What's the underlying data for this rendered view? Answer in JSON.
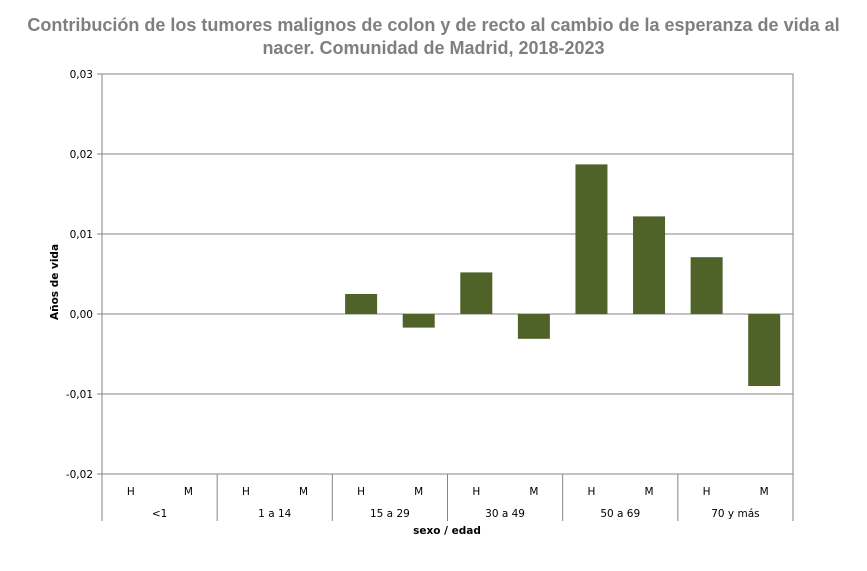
{
  "chart_data": {
    "type": "bar",
    "title": "Contribución de los tumores malignos de colon y de recto al cambio de la esperanza de vida al nacer. Comunidad de Madrid, 2018-2023",
    "xlabel": "sexo / edad",
    "ylabel": "Años de vida",
    "ylim": [
      -0.02,
      0.03
    ],
    "yticks": [
      "-0,02",
      "-0,01",
      "0,00",
      "0,01",
      "0,02",
      "0,03"
    ],
    "ytick_values": [
      -0.02,
      -0.01,
      0.0,
      0.01,
      0.02,
      0.03
    ],
    "grid": true,
    "bar_color": "#4f6228",
    "groups": [
      "<1",
      "1 a 14",
      "15 a 29",
      "30 a 49",
      "50 a 69",
      "70 y más"
    ],
    "sexes": [
      "H",
      "M"
    ],
    "categories": [
      "<1 H",
      "<1 M",
      "1 a 14 H",
      "1 a 14 M",
      "15 a 29 H",
      "15 a 29 M",
      "30 a 49 H",
      "30 a 49 M",
      "50 a 69 H",
      "50 a 69 M",
      "70 y más H",
      "70 y más M"
    ],
    "values": [
      0.0,
      0.0,
      0.0,
      0.0,
      0.0025,
      -0.0017,
      0.0052,
      -0.0031,
      0.0187,
      0.0122,
      0.0071,
      -0.009
    ]
  }
}
